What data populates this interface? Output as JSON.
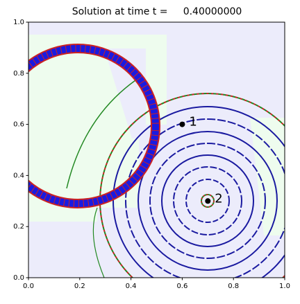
{
  "chart_data": {
    "type": "contour",
    "title": "Solution at time t =     0.40000000",
    "xlim": [
      0,
      1
    ],
    "ylim": [
      0,
      1
    ],
    "xticks": [
      {
        "value": 0,
        "label": "0.0"
      },
      {
        "value": 0.2,
        "label": "0.2"
      },
      {
        "value": 0.4,
        "label": "0.4"
      },
      {
        "value": 0.6,
        "label": "0.6"
      },
      {
        "value": 0.8,
        "label": "0.8"
      },
      {
        "value": 1,
        "label": "1.0"
      }
    ],
    "yticks": [
      {
        "value": 0,
        "label": "0.0"
      },
      {
        "value": 0.2,
        "label": "0.2"
      },
      {
        "value": 0.4,
        "label": "0.4"
      },
      {
        "value": 0.6,
        "label": "0.6"
      },
      {
        "value": 0.8,
        "label": "0.8"
      },
      {
        "value": 1,
        "label": "1.0"
      }
    ],
    "gauges": [
      {
        "id": 1,
        "x": 0.6,
        "y": 0.6
      },
      {
        "id": 2,
        "x": 0.7,
        "y": 0.3
      }
    ]
  }
}
